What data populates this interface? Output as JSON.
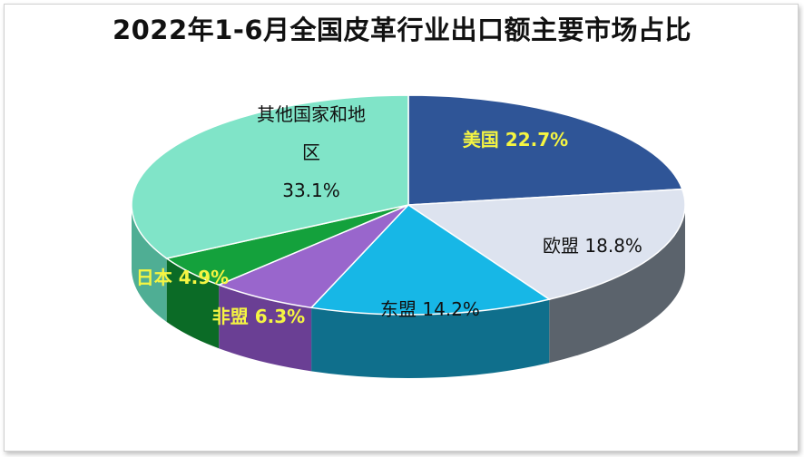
{
  "chart_data": {
    "type": "pie",
    "title": "2022年1-6月全国皮革行业出口额主要市场占比",
    "slices": [
      {
        "name": "美国",
        "value": 22.7,
        "label": "美国 22.7%",
        "color": "#2f5597",
        "side": "#1f3c6e",
        "text_color": "#f5f542"
      },
      {
        "name": "欧盟",
        "value": 18.8,
        "label": "欧盟 18.8%",
        "color": "#dde3ef",
        "side": "#5b636c",
        "text_color": "#111111"
      },
      {
        "name": "东盟",
        "value": 14.2,
        "label": "东盟 14.2%",
        "color": "#17b7e6",
        "side": "#0f6f8c",
        "text_color": "#111111"
      },
      {
        "name": "非盟",
        "value": 6.3,
        "label": "非盟 6.3%",
        "color": "#9966cc",
        "side": "#6a3f94",
        "text_color": "#f5f542"
      },
      {
        "name": "日本",
        "value": 4.9,
        "label": "日本 4.9%",
        "color": "#14a13c",
        "side": "#0b6b26",
        "text_color": "#f5f542"
      },
      {
        "name": "其他国家和地区",
        "value": 33.1,
        "label_lines": [
          "其他国家和地",
          "区",
          "33.1%"
        ],
        "color": "#80e4c8",
        "side": "#4fae94",
        "text_color": "#111111"
      }
    ]
  }
}
